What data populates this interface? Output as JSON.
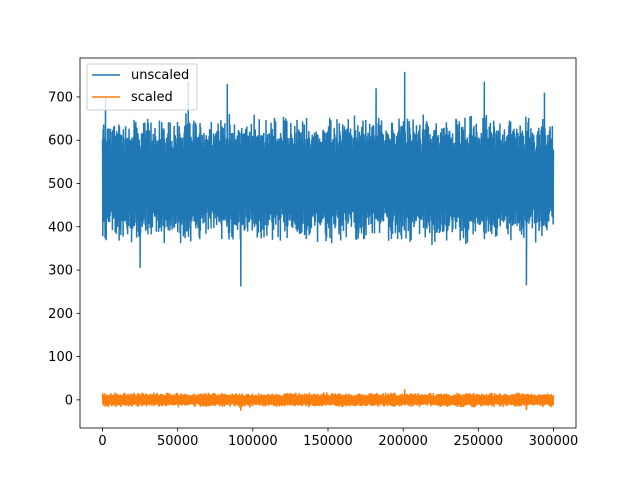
{
  "chart_data": {
    "type": "line",
    "title": "",
    "xlabel": "",
    "ylabel": "",
    "xlim": [
      -15000,
      315000
    ],
    "ylim": [
      -65,
      790
    ],
    "xticks": [
      0,
      50000,
      100000,
      150000,
      200000,
      250000,
      300000
    ],
    "xtick_labels": [
      "0",
      "50000",
      "100000",
      "150000",
      "200000",
      "250000",
      "300000"
    ],
    "yticks": [
      0,
      100,
      200,
      300,
      400,
      500,
      600,
      700
    ],
    "ytick_labels": [
      "0",
      "100",
      "200",
      "300",
      "400",
      "500",
      "600",
      "700"
    ],
    "grid": false,
    "legend": "upper-left",
    "series": [
      {
        "name": "unscaled",
        "color": "#1f77b4",
        "x_range": [
          0,
          300000
        ],
        "center": 510,
        "typical_band": [
          355,
          665
        ],
        "extremes": [
          {
            "x": 2000,
            "y": 700
          },
          {
            "x": 25000,
            "y": 305
          },
          {
            "x": 57000,
            "y": 735
          },
          {
            "x": 83000,
            "y": 730
          },
          {
            "x": 92000,
            "y": 262
          },
          {
            "x": 138000,
            "y": 385
          },
          {
            "x": 182000,
            "y": 720
          },
          {
            "x": 201000,
            "y": 758
          },
          {
            "x": 254000,
            "y": 735
          },
          {
            "x": 282000,
            "y": 265
          },
          {
            "x": 294000,
            "y": 710
          }
        ]
      },
      {
        "name": "scaled",
        "color": "#ff7f0e",
        "x_range": [
          0,
          300000
        ],
        "center": 0,
        "typical_band": [
          -18,
          18
        ],
        "extremes": [
          {
            "x": 92000,
            "y": -25
          },
          {
            "x": 201000,
            "y": 25
          },
          {
            "x": 282000,
            "y": -24
          }
        ]
      }
    ]
  }
}
